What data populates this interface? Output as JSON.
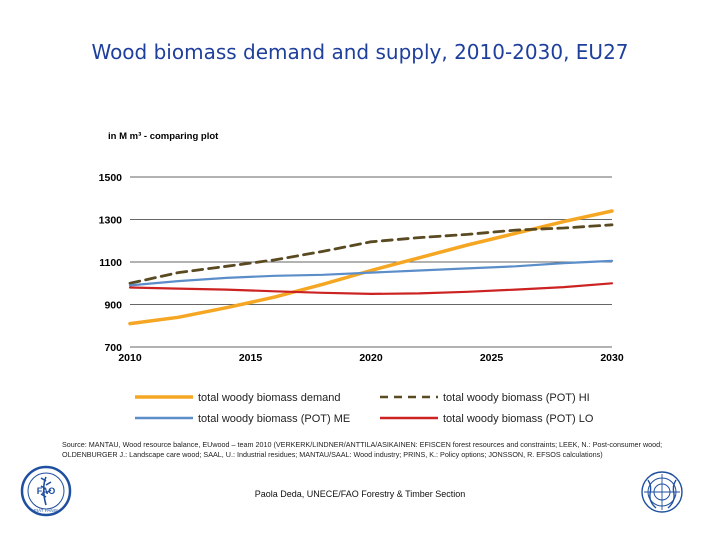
{
  "slide": {
    "title": "Wood biomass demand and supply, 2010-2030, EU27",
    "source": "Source: MANTAU, Wood resource balance, EUwood – team 2010 (VERKERK/LINDNER/ANTTILA/ASIKAINEN: EFISCEN forest resources and constraints; LEEK, N.: Post-consumer wood; OLDENBURGER J.: Landscape care wood; SAAL, U.: Industrial residues; MANTAU/SAAL: Wood industry; PRINS, K.: Policy options; JONSSON, R. EFSOS calculations)",
    "presenter": "Paola Deda, UNECE/FAO Forestry & Timber Section",
    "logos": {
      "fao_text": "FAO",
      "fao_motto": "FIAT PANIS"
    }
  },
  "chart_data": {
    "type": "line",
    "title": "in M m³ - comparing plot",
    "xlabel": "",
    "ylabel": "",
    "x": [
      2010,
      2012,
      2014,
      2016,
      2018,
      2020,
      2022,
      2024,
      2026,
      2028,
      2030
    ],
    "xticks": [
      2010,
      2015,
      2020,
      2025,
      2030
    ],
    "yticks": [
      700,
      900,
      1100,
      1300,
      1500
    ],
    "xlim": [
      2010,
      2030
    ],
    "ylim": [
      700,
      1500
    ],
    "grid": true,
    "legend_position": "bottom",
    "colors": {
      "demand": "#f5a623",
      "hi": "#5a4a22",
      "me": "#5b8ec9",
      "lo": "#cc2222",
      "grid": "#666666",
      "axis_text": "#000000"
    },
    "series": [
      {
        "key": "demand",
        "name": "total woody biomass demand",
        "style": "solid",
        "values": [
          810,
          840,
          885,
          935,
          995,
          1060,
          1120,
          1180,
          1235,
          1290,
          1340
        ]
      },
      {
        "key": "hi",
        "name": "total woody biomass (POT) HI",
        "style": "dashed",
        "values": [
          1000,
          1050,
          1080,
          1110,
          1150,
          1195,
          1215,
          1230,
          1250,
          1260,
          1275
        ]
      },
      {
        "key": "me",
        "name": "total woody biomass (POT) ME",
        "style": "solid",
        "values": [
          990,
          1010,
          1025,
          1035,
          1040,
          1050,
          1060,
          1070,
          1080,
          1095,
          1105
        ]
      },
      {
        "key": "lo",
        "name": "total woody biomass (POT) LO",
        "style": "solid",
        "values": [
          980,
          975,
          970,
          962,
          955,
          950,
          952,
          960,
          970,
          982,
          1000
        ]
      }
    ]
  }
}
